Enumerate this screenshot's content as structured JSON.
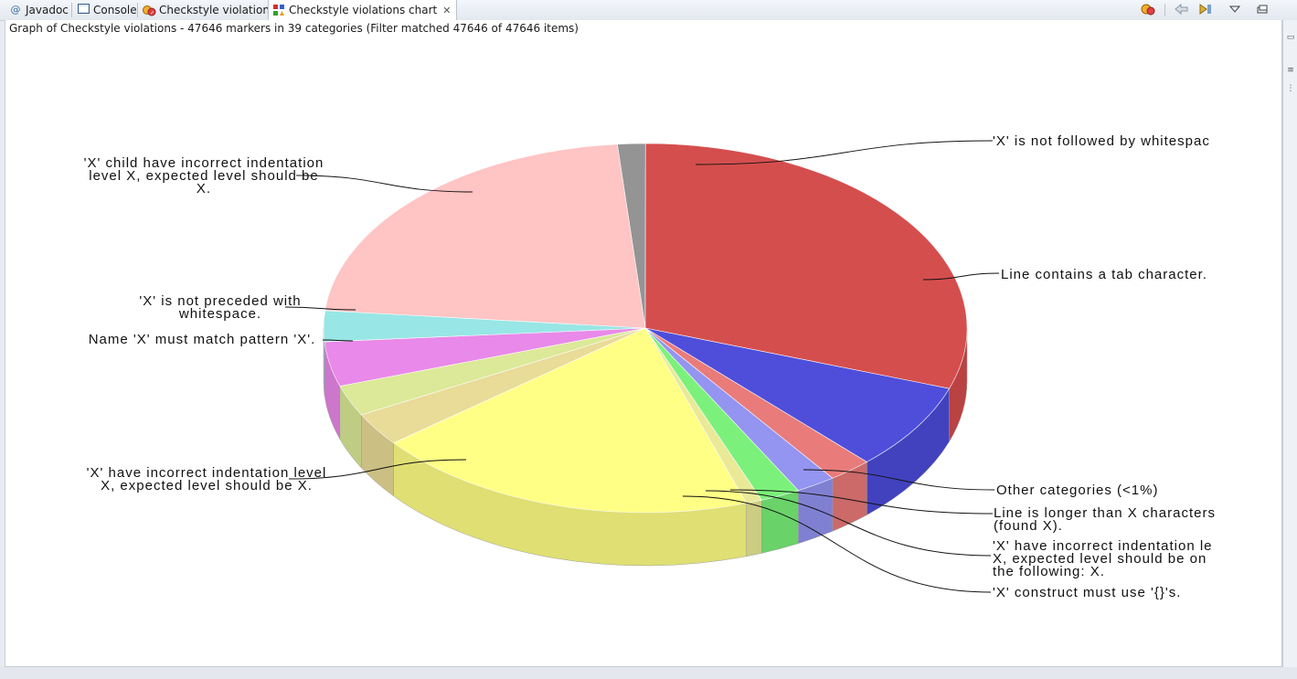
{
  "tabs": [
    {
      "label": "Javadoc",
      "icon": "at-icon",
      "active": false
    },
    {
      "label": "Console",
      "icon": "console-icon",
      "active": false
    },
    {
      "label": "Checkstyle violations",
      "icon": "checkstyle-icon",
      "active": false
    },
    {
      "label": "Checkstyle violations chart",
      "icon": "chart-icon",
      "active": true
    }
  ],
  "toolbar": {
    "icons": [
      "checkstyle-filter-icon",
      "back-icon",
      "drilldown-icon",
      "view-menu-icon",
      "minimize-icon"
    ]
  },
  "status": "Graph of Checkstyle violations - 47646 markers in 39 categories (Filter matched 47646 of 47646 items)",
  "chart_data": {
    "type": "pie",
    "style": "3d",
    "slices": [
      {
        "label": "'X' is not followed by whitespace.",
        "value": 1.4,
        "color": "#8c8c8c"
      },
      {
        "label": "Line contains a tab character.",
        "value": 30.3,
        "color": "#d24040"
      },
      {
        "label": "Other categories (<1%)",
        "value": 7.6,
        "color": "#4040d8"
      },
      {
        "label": "Line is longer than X characters (found X).",
        "value": 2.2,
        "color": "#e87070"
      },
      {
        "label": "'X' have incorrect indentation level X, expected level should be one of the following: X.",
        "value": 2.0,
        "color": "#8c8cf0"
      },
      {
        "label": "'X' construct must use '{}'s.",
        "value": 2.0,
        "color": "#70f070"
      },
      {
        "label": "",
        "value": 0.8,
        "color": "#e8e890"
      },
      {
        "label": "'X' have incorrect indentation level X, expected level should be X.",
        "value": 19.4,
        "color": "#ffff7c"
      },
      {
        "label": "",
        "value": 2.9,
        "color": "#e8d890"
      },
      {
        "label": "",
        "value": 2.7,
        "color": "#d8e890"
      },
      {
        "label": "Name 'X' must match pattern 'X'.",
        "value": 3.9,
        "color": "#e880e8"
      },
      {
        "label": "'X' is not preceded with whitespace.",
        "value": 2.7,
        "color": "#90e4e4"
      },
      {
        "label": "'X' child have incorrect indentation level X, expected level should be X.",
        "value": 22.1,
        "color": "#ffc0c0"
      }
    ],
    "display_labels": {
      "not_followed": [
        "'X' is not followed by whitespac"
      ],
      "tab": [
        "Line contains a tab character."
      ],
      "other": [
        "Other categories (<1%)"
      ],
      "longer": [
        "Line is longer than X characters",
        "(found X)."
      ],
      "indent_one_of": [
        "'X' have incorrect indentation le",
        "X, expected level should be on",
        "the following: X."
      ],
      "construct": [
        "'X' construct must use '{}'s."
      ],
      "indent_level": [
        "'X' have incorrect indentation level",
        "X, expected level should be X."
      ],
      "name_pattern": [
        "Name 'X' must match pattern 'X'."
      ],
      "not_preceded": [
        "'X' is not preceded with",
        "whitespace."
      ],
      "child_indent": [
        "'X' child have incorrect indentation",
        "level X, expected level should be",
        "X."
      ]
    }
  }
}
